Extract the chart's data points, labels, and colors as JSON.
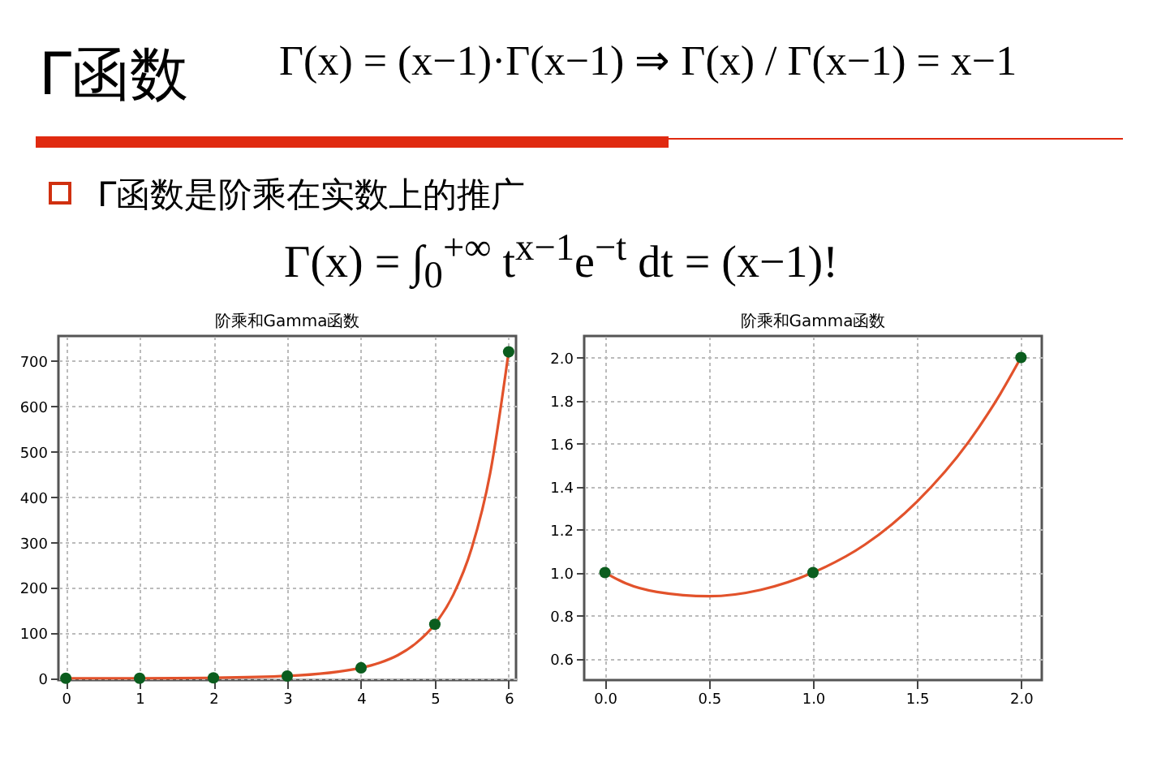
{
  "chart_data": [
    {
      "type": "line",
      "title": "阶乘和Gamma函数",
      "annotations": [
        "Γ函数",
        "Γ(x) = (x−1)·Γ(x−1) ⇒ Γ(x) / Γ(x−1) = x−1",
        "Γ函数是阶乘在实数上的推广",
        "Γ(x) = ∫$_{0}$$^{+∞}$ t$^{x−1}$e$^{−t}$ dt = (x−1)!"
      ],
      "series": [
        {
          "color": "#e2522b",
          "marker": "none",
          "x": [
            0,
            1,
            2,
            3,
            4,
            4.25,
            4.5,
            4.75,
            5,
            5.25,
            5.5,
            5.75,
            6
          ],
          "values": [
            1,
            1,
            2,
            6,
            24,
            35,
            52,
            79,
            120,
            185,
            288,
            453,
            720
          ]
        },
        {
          "type": "scatter",
          "color": "#0b5d1e",
          "marker": "circle",
          "x": [
            0,
            1,
            2,
            3,
            4,
            5,
            6
          ],
          "values": [
            1,
            1,
            2,
            6,
            24,
            120,
            720
          ]
        }
      ],
      "xlim": [
        -0.1,
        6.1
      ],
      "xticks": [
        0,
        1,
        2,
        3,
        4,
        5,
        6
      ],
      "ylim": [
        -3,
        755
      ],
      "yticks": [
        0,
        100,
        200,
        300,
        400,
        500,
        600,
        700
      ],
      "grid": true
    },
    {
      "type": "line",
      "title": "阶乘和Gamma函数",
      "series": [
        {
          "color": "#e2522b",
          "marker": "none",
          "x": [
            0,
            0.1,
            0.25,
            0.5,
            0.75,
            1,
            1.25,
            1.5,
            1.75,
            1.9,
            2
          ],
          "values": [
            1,
            0.95,
            0.91,
            0.89,
            0.92,
            1,
            1.13,
            1.33,
            1.61,
            1.83,
            2
          ]
        },
        {
          "type": "scatter",
          "color": "#0b5d1e",
          "marker": "circle",
          "x": [
            0,
            1,
            2
          ],
          "values": [
            1,
            1,
            2
          ]
        }
      ],
      "xlim": [
        -0.1,
        2.1
      ],
      "xticks": [
        {
          "value": 0,
          "label": "0.0"
        },
        {
          "value": 0.5,
          "label": "0.5"
        },
        {
          "value": 1,
          "label": "1.0"
        },
        {
          "value": 1.5,
          "label": "1.5"
        },
        {
          "value": 2,
          "label": "2.0"
        }
      ],
      "ylim": [
        0.5,
        2.1
      ],
      "yticks": [
        {
          "value": 0.6,
          "label": "0.6"
        },
        {
          "value": 0.8,
          "label": "0.8"
        },
        {
          "value": 1,
          "label": "1.0"
        },
        {
          "value": 1.2,
          "label": "1.2"
        },
        {
          "value": 1.4,
          "label": "1.4"
        },
        {
          "value": 1.6,
          "label": "1.6"
        },
        {
          "value": 1.8,
          "label": "1.8"
        },
        {
          "value": 2,
          "label": "2.0"
        }
      ],
      "grid": true
    }
  ]
}
